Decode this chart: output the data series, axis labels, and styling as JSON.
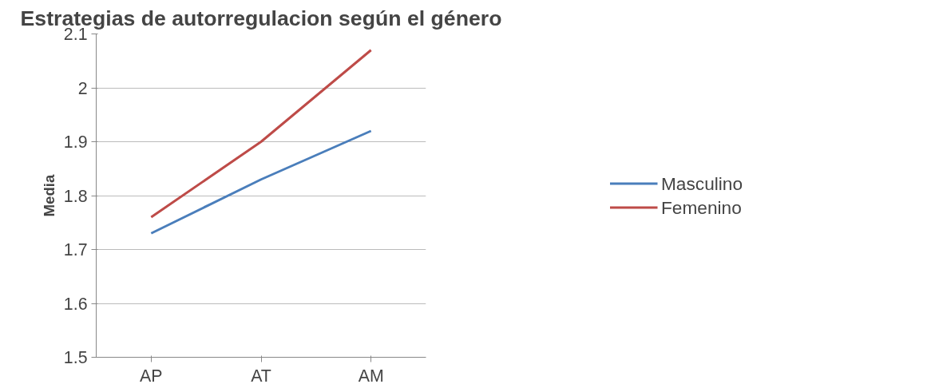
{
  "chart_data": {
    "type": "line",
    "title": "Estrategias de autorregulacion según el género",
    "ylabel": "Media",
    "categories": [
      "AP",
      "AT",
      "AM"
    ],
    "series": [
      {
        "name": "Masculino",
        "color": "#4a7ebb",
        "values": [
          1.73,
          1.83,
          1.92
        ]
      },
      {
        "name": "Femenino",
        "color": "#be4b48",
        "values": [
          1.76,
          1.9,
          2.07
        ]
      }
    ],
    "ylim": [
      1.5,
      2.1
    ],
    "yticks": [
      1.5,
      1.6,
      1.7,
      1.8,
      1.9,
      2,
      2.1
    ],
    "grid": "y",
    "legend": "right",
    "marker": "none",
    "line_style": "solid"
  }
}
